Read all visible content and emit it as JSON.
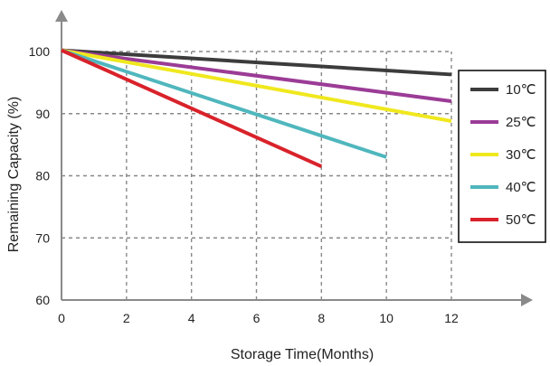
{
  "chart_data": {
    "type": "line",
    "xlabel": "Storage Time(Months)",
    "ylabel": "Remaining Capacity (%)",
    "xlim": [
      0,
      12
    ],
    "ylim": [
      60,
      100
    ],
    "x_ticks": [
      "0",
      "2",
      "4",
      "6",
      "8",
      "10",
      "12"
    ],
    "y_ticks": [
      "60",
      "70",
      "80",
      "90",
      "100"
    ],
    "grid": true,
    "legend_position": "right",
    "series": [
      {
        "name": "10℃",
        "color": "#3c3c3c",
        "x": [
          0,
          12
        ],
        "y": [
          100.2,
          96.3
        ]
      },
      {
        "name": "25℃",
        "color": "#9b3c96",
        "x": [
          0,
          12
        ],
        "y": [
          100.2,
          92.0
        ]
      },
      {
        "name": "30℃",
        "color": "#f0e81e",
        "x": [
          0,
          12
        ],
        "y": [
          100.2,
          88.8
        ]
      },
      {
        "name": "40℃",
        "color": "#4fb7bd",
        "x": [
          0,
          10
        ],
        "y": [
          100.2,
          83.0
        ]
      },
      {
        "name": "50℃",
        "color": "#d9222a",
        "x": [
          0,
          8
        ],
        "y": [
          100.2,
          81.5
        ]
      }
    ]
  }
}
